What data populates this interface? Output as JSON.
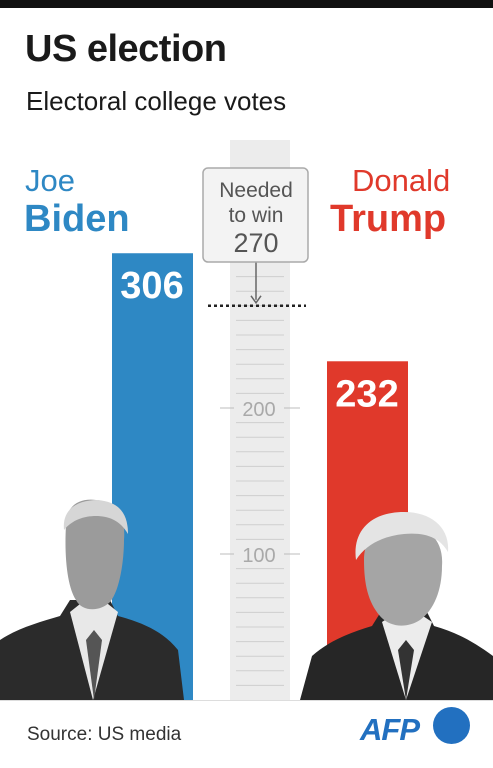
{
  "header": {
    "title": "US election",
    "subtitle": "Electoral college votes"
  },
  "candidates": {
    "biden": {
      "first": "Joe",
      "last": "Biden"
    },
    "trump": {
      "first": "Donald",
      "last": "Trump"
    }
  },
  "colors": {
    "biden": "#2e88c4",
    "trump": "#e0392b",
    "needed_band": "#ececec"
  },
  "needed_box": {
    "line1": "Needed",
    "line2": "to win",
    "value": "270"
  },
  "footer": {
    "source": "Source: US media",
    "logo": "AFP"
  },
  "chart_data": {
    "type": "bar",
    "title": "US election",
    "subtitle": "Electoral college votes",
    "categories": [
      "Joe Biden",
      "Donald Trump"
    ],
    "values": [
      306,
      232
    ],
    "data_labels": [
      "306",
      "232"
    ],
    "y_ticks": [
      "100",
      "200"
    ],
    "threshold": {
      "label": "Needed to win",
      "value": 270
    },
    "ylim": [
      0,
      306
    ],
    "grid": true,
    "legend": "none"
  }
}
